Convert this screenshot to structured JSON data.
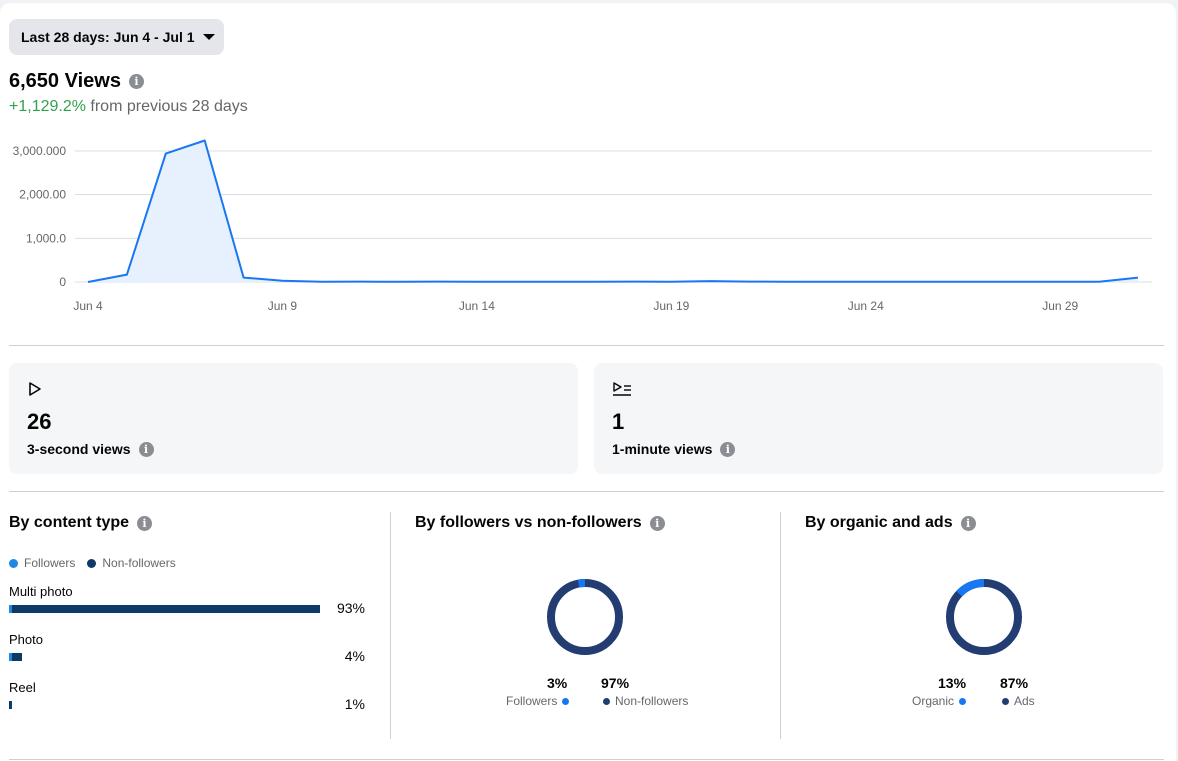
{
  "date_range": {
    "label": "Last 28 days: Jun 4 - Jul 1"
  },
  "views": {
    "total": "6,650 Views",
    "change_value": "+1,129.2%",
    "change_text": " from previous 28 days"
  },
  "chart_data": {
    "type": "area",
    "x": [
      "Jun 4",
      "Jun 5",
      "Jun 6",
      "Jun 7",
      "Jun 8",
      "Jun 9",
      "Jun 10",
      "Jun 11",
      "Jun 12",
      "Jun 13",
      "Jun 14",
      "Jun 15",
      "Jun 16",
      "Jun 17",
      "Jun 18",
      "Jun 19",
      "Jun 20",
      "Jun 21",
      "Jun 22",
      "Jun 23",
      "Jun 24",
      "Jun 25",
      "Jun 26",
      "Jun 27",
      "Jun 28",
      "Jun 29",
      "Jun 30",
      "Jul 1"
    ],
    "series": [
      {
        "values": [
          0,
          170,
          2940,
          3240,
          100,
          30,
          5,
          10,
          5,
          10,
          5,
          5,
          5,
          5,
          10,
          5,
          20,
          10,
          5,
          5,
          5,
          5,
          5,
          5,
          5,
          5,
          5,
          100
        ]
      }
    ],
    "y_ticks": [
      "0",
      "1,000.0",
      "2,000.00",
      "3,000.000"
    ],
    "y_tick_values": [
      0,
      1000,
      2000,
      3000
    ],
    "x_tick_labels": [
      "Jun 4",
      "Jun 9",
      "Jun 14",
      "Jun 19",
      "Jun 24",
      "Jun 29"
    ],
    "x_tick_index": [
      0,
      5,
      10,
      15,
      20,
      25
    ],
    "ylim": [
      0,
      3000
    ],
    "grid": true,
    "line_color": "#1877f2",
    "fill_color": "#e7f0fd"
  },
  "stats": [
    {
      "icon": "play-icon",
      "value": "26",
      "label": "3-second views"
    },
    {
      "icon": "play-list-icon",
      "value": "1",
      "label": "1-minute views"
    }
  ],
  "content_type": {
    "title": "By content type",
    "legend": [
      {
        "label": "Followers",
        "color": "#1e88e5"
      },
      {
        "label": "Non-followers",
        "color": "#0d3b66"
      }
    ],
    "rows": [
      {
        "label": "Multi photo",
        "pct": "93%",
        "value": 93,
        "followers_share": 0.01
      },
      {
        "label": "Photo",
        "pct": "4%",
        "value": 4,
        "followers_share": 0.2
      },
      {
        "label": "Reel",
        "pct": "1%",
        "value": 1,
        "followers_share": 0.0
      }
    ]
  },
  "followers": {
    "title": "By followers vs non-followers",
    "a_pct": "3%",
    "a_label": "Followers",
    "a_value": 3,
    "b_pct": "97%",
    "b_label": "Non-followers",
    "b_value": 97
  },
  "organic": {
    "title": "By organic and ads",
    "a_pct": "13%",
    "a_label": "Organic",
    "a_value": 13,
    "b_pct": "87%",
    "b_label": "Ads",
    "b_value": 87
  },
  "colors": {
    "light_blue": "#1877f2",
    "dark_navy": "#233d72",
    "bar_navy": "#0d3b66"
  }
}
